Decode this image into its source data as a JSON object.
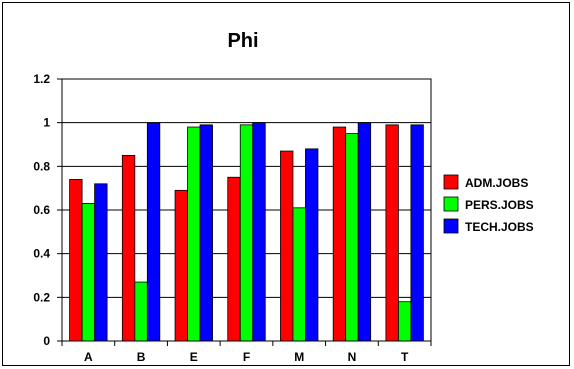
{
  "chart_data": {
    "type": "bar",
    "title": "Phi",
    "xlabel": "",
    "ylabel": "",
    "categories": [
      "A",
      "B",
      "E",
      "F",
      "M",
      "N",
      "T"
    ],
    "series": [
      {
        "name": "ADM.JOBS",
        "color": "#ff0000",
        "values": [
          0.74,
          0.85,
          0.69,
          0.75,
          0.87,
          0.98,
          0.99
        ]
      },
      {
        "name": "PERS.JOBS",
        "color": "#00ff00",
        "values": [
          0.63,
          0.27,
          0.98,
          0.99,
          0.61,
          0.95,
          0.18
        ]
      },
      {
        "name": "TECH.JOBS",
        "color": "#0000ff",
        "values": [
          0.72,
          1.0,
          0.99,
          1.0,
          0.88,
          1.0,
          0.99
        ]
      }
    ],
    "ylim": [
      0,
      1.2
    ],
    "yticks": [
      "0",
      "0.2",
      "0.4",
      "0.6",
      "0.8",
      "1",
      "1.2"
    ],
    "grid": true,
    "legend_position": "right",
    "plot_background": "#ffffff"
  }
}
